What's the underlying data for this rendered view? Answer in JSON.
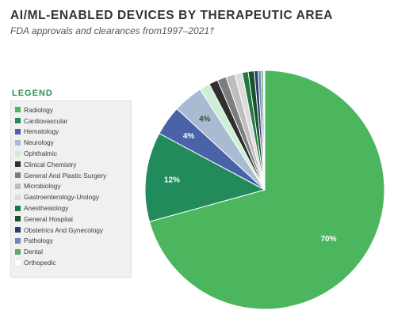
{
  "title": "AI/ML-ENABLED DEVICES BY THERAPEUTIC AREA",
  "subtitle": "FDA approvals and clearances from1997–2021†",
  "legend_heading": "LEGEND",
  "chart_data": {
    "type": "pie",
    "legend_placement": "left",
    "slices": [
      {
        "name": "Radiology",
        "value": 70,
        "color": "#4cb65f",
        "label": "70%"
      },
      {
        "name": "Cardiovascular",
        "value": 12,
        "color": "#228b5b",
        "label": "12%"
      },
      {
        "name": "Hematology",
        "value": 4,
        "color": "#4a62a8",
        "label": "4%"
      },
      {
        "name": "Neurology",
        "value": 4,
        "color": "#a9bbd3",
        "label": "4%"
      },
      {
        "name": "Ophthalmic",
        "value": 1.4,
        "color": "#cdeed7",
        "label": ""
      },
      {
        "name": "Clinical Chemistry",
        "value": 1.2,
        "color": "#2f2f2f",
        "label": ""
      },
      {
        "name": "General And Plastic Surgery",
        "value": 1.2,
        "color": "#7d7d7d",
        "label": ""
      },
      {
        "name": "Microbiology",
        "value": 1.2,
        "color": "#bdbdbd",
        "label": ""
      },
      {
        "name": "Gastroenterology-Urology",
        "value": 1.0,
        "color": "#dcdcdc",
        "label": ""
      },
      {
        "name": "Anesthesiology",
        "value": 0.8,
        "color": "#1f7a3e",
        "label": ""
      },
      {
        "name": "General Hospital",
        "value": 0.8,
        "color": "#184f2f",
        "label": ""
      },
      {
        "name": "Obstetrics And Gynecology",
        "value": 0.5,
        "color": "#2a3d6b",
        "label": ""
      },
      {
        "name": "Pathology",
        "value": 0.4,
        "color": "#6f84b8",
        "label": ""
      },
      {
        "name": "Dental",
        "value": 0.3,
        "color": "#5aa86a",
        "label": ""
      },
      {
        "name": "Orthopedic",
        "value": 0.2,
        "color": "#ffffff",
        "label": ""
      }
    ]
  }
}
